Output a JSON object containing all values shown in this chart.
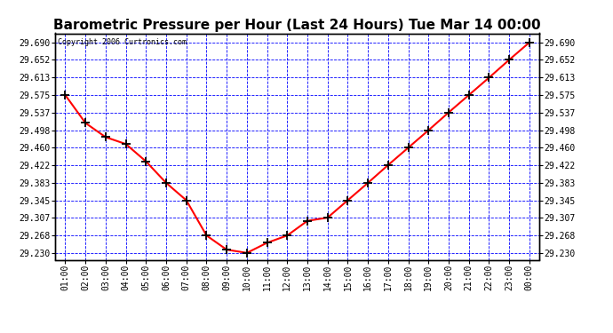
{
  "title": "Barometric Pressure per Hour (Last 24 Hours) Tue Mar 14 00:00",
  "copyright": "Copyright 2006 Curtronics.com",
  "x_labels": [
    "01:00",
    "02:00",
    "03:00",
    "04:00",
    "05:00",
    "06:00",
    "07:00",
    "08:00",
    "09:00",
    "10:00",
    "11:00",
    "12:00",
    "13:00",
    "14:00",
    "15:00",
    "16:00",
    "17:00",
    "18:00",
    "19:00",
    "20:00",
    "21:00",
    "22:00",
    "23:00",
    "00:00"
  ],
  "y_values": [
    29.575,
    29.514,
    29.483,
    29.468,
    29.43,
    29.383,
    29.345,
    29.268,
    29.237,
    29.23,
    29.252,
    29.268,
    29.3,
    29.307,
    29.345,
    29.383,
    29.422,
    29.46,
    29.498,
    29.537,
    29.575,
    29.613,
    29.652,
    29.69
  ],
  "y_ticks": [
    29.23,
    29.268,
    29.307,
    29.345,
    29.383,
    29.422,
    29.46,
    29.498,
    29.537,
    29.575,
    29.613,
    29.652,
    29.69
  ],
  "ylim": [
    29.215,
    29.71
  ],
  "line_color": "red",
  "marker_color": "black",
  "fig_bg_color": "#ffffff",
  "plot_bg_color": "#ffffff",
  "title_fontsize": 11,
  "grid_color": "blue",
  "border_color": "black"
}
